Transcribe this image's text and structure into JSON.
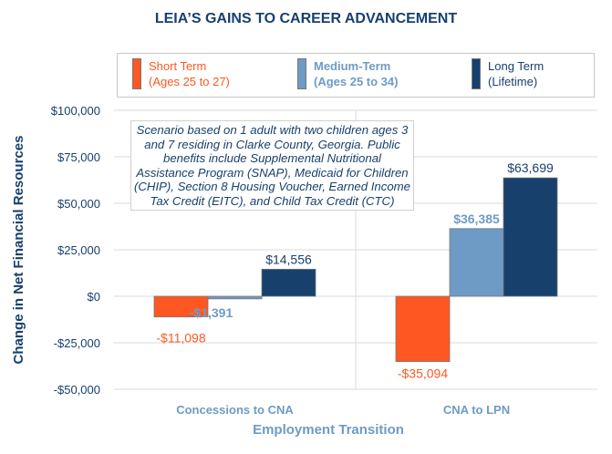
{
  "chart_data": {
    "type": "bar",
    "title": "LEIA’S GAINS TO CAREER ADVANCEMENT",
    "xlabel": "Employment Transition",
    "ylabel": "Change in Net Financial Resources",
    "categories": [
      "Concessions to CNA",
      "CNA to LPN"
    ],
    "ylim": [
      -50000,
      100000
    ],
    "yticks": [
      100000,
      75000,
      50000,
      25000,
      0,
      -25000,
      -50000
    ],
    "ytick_labels": [
      "$100,000",
      "$75,000",
      "$50,000",
      "$25,000",
      "$0",
      "-$25,000",
      "-$50,000"
    ],
    "grid": "horizontal",
    "legend_position": "top",
    "series": [
      {
        "name": "Short Term\n(Ages 25 to 27)",
        "color": "#ff5722",
        "values": [
          -11098,
          -35094
        ],
        "labels": [
          "-$11,098",
          "-$35,094"
        ]
      },
      {
        "name": "Medium-Term\n(Ages 25 to 34)",
        "color": "#6e9bc5",
        "values": [
          -1391,
          36385
        ],
        "labels": [
          "-$1,391",
          "$36,385"
        ]
      },
      {
        "name": "Long Term\n(Lifetime)",
        "color": "#17406d",
        "values": [
          14556,
          63699
        ],
        "labels": [
          "$14,556",
          "$63,699"
        ]
      }
    ],
    "annotation": "Scenario based on 1 adult with two children ages 3 and 7 residing in Clarke County, Georgia. Public benefits include Supplemental Nutritional Assistance Program (SNAP), Medicaid for Children (CHIP), Section 8 Housing Voucher, Earned Income Tax Credit (EITC), and Child Tax Credit (CTC)"
  }
}
